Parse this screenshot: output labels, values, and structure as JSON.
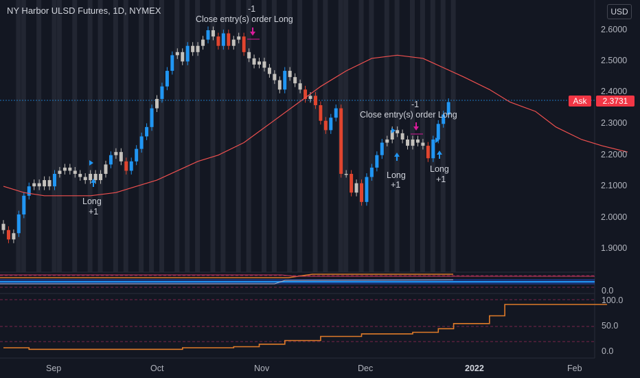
{
  "header": {
    "symbol_title": "NY Harbor ULSD Futures, 1D, NYMEX",
    "currency": "USD"
  },
  "price_axis": {
    "labels": [
      "2.6000",
      "2.5000",
      "2.4000",
      "2.3000",
      "2.2000",
      "2.1000",
      "2.0000",
      "1.9000"
    ],
    "ask_label": "Ask",
    "last_price": "2.3731"
  },
  "indicator_axis": {
    "pane1_labels": [
      "0.0"
    ],
    "pane2_labels": [
      "100.0",
      "50.0",
      "0.0"
    ]
  },
  "time_axis": {
    "labels": [
      "Sep",
      "Oct",
      "Nov",
      "Dec",
      "2022",
      "Feb"
    ]
  },
  "annotations": {
    "close1_qty": "-1",
    "close1_text": "Close entry(s) order Long",
    "long1_text": "Long",
    "long1_qty": "+1",
    "close2_qty": "-1",
    "close2_text": "Close entry(s) order Long",
    "long2_text": "Long",
    "long2_qty": "+1",
    "long3_text": "Long",
    "long3_qty": "+1"
  },
  "colors": {
    "background": "#131722",
    "bull_blue": "#2196f3",
    "bear_red": "#e0452f",
    "neutral_gray": "#c4c1bc",
    "moving_average": "#f0504f",
    "orange_line": "#e07b29",
    "ask_tag": "#f23645"
  },
  "chart_data": {
    "type": "candlestick",
    "instrument": "NY Harbor ULSD Futures",
    "timeframe": "1D",
    "ylim": [
      1.88,
      2.65
    ],
    "close_approx": [
      1.96,
      1.93,
      1.95,
      2.01,
      2.07,
      2.1,
      2.11,
      2.1,
      2.12,
      2.1,
      2.14,
      2.15,
      2.16,
      2.15,
      2.14,
      2.13,
      2.12,
      2.14,
      2.12,
      2.14,
      2.17,
      2.2,
      2.21,
      2.18,
      2.15,
      2.18,
      2.22,
      2.26,
      2.29,
      2.35,
      2.38,
      2.42,
      2.47,
      2.52,
      2.53,
      2.5,
      2.55,
      2.53,
      2.55,
      2.57,
      2.6,
      2.58,
      2.55,
      2.59,
      2.55,
      2.57,
      2.58,
      2.53,
      2.51,
      2.49,
      2.5,
      2.48,
      2.46,
      2.44,
      2.41,
      2.47,
      2.45,
      2.43,
      2.41,
      2.38,
      2.39,
      2.36,
      2.31,
      2.28,
      2.32,
      2.35,
      2.14,
      2.14,
      2.08,
      2.11,
      2.05,
      2.13,
      2.16,
      2.2,
      2.24,
      2.25,
      2.28,
      2.27,
      2.25,
      2.23,
      2.25,
      2.24,
      2.23,
      2.19,
      2.25,
      2.3,
      2.33,
      2.37
    ],
    "moving_average_approx": [
      2.1,
      2.08,
      2.07,
      2.07,
      2.07,
      2.08,
      2.1,
      2.12,
      2.15,
      2.18,
      2.2,
      2.24,
      2.3,
      2.36,
      2.42,
      2.47,
      2.51,
      2.52,
      2.51,
      2.48,
      2.45,
      2.41,
      2.37,
      2.34,
      2.29,
      2.25,
      2.23,
      2.21
    ],
    "moving_average_days_approx": [
      0,
      4,
      8,
      13,
      17,
      22,
      26,
      30,
      34,
      38,
      42,
      47,
      52,
      57,
      62,
      67,
      72,
      77,
      82,
      86,
      90,
      95,
      99,
      104,
      108,
      113,
      117,
      122
    ],
    "orange_indicator_approx": [
      8,
      5,
      5,
      5,
      5,
      8,
      8,
      10,
      15,
      22,
      22,
      30,
      35,
      35,
      38,
      45,
      55,
      55,
      70,
      92,
      92,
      92,
      92,
      92,
      92
    ],
    "orange_indicator_days_approx": [
      0,
      5,
      15,
      25,
      30,
      35,
      40,
      45,
      50,
      55,
      60,
      62,
      70,
      75,
      80,
      85,
      88,
      92,
      95,
      98,
      103,
      108,
      113,
      116,
      118
    ],
    "pane2_ylim": [
      0,
      100
    ],
    "signals": [
      {
        "label": "Long",
        "qty": "+1"
      },
      {
        "label": "Close entry(s) order Long",
        "qty": "-1"
      },
      {
        "label": "Long",
        "qty": "+1"
      },
      {
        "label": "Close entry(s) order Long",
        "qty": "-1"
      },
      {
        "label": "Long",
        "qty": "+1"
      }
    ],
    "x_tick_labels": [
      "Sep",
      "Oct",
      "Nov",
      "Dec",
      "2022",
      "Feb"
    ],
    "y_tick_labels": [
      "2.6000",
      "2.5000",
      "2.4000",
      "2.3000",
      "2.2000",
      "2.1000",
      "2.0000",
      "1.9000"
    ],
    "last_price": 2.3731,
    "grid": false
  }
}
